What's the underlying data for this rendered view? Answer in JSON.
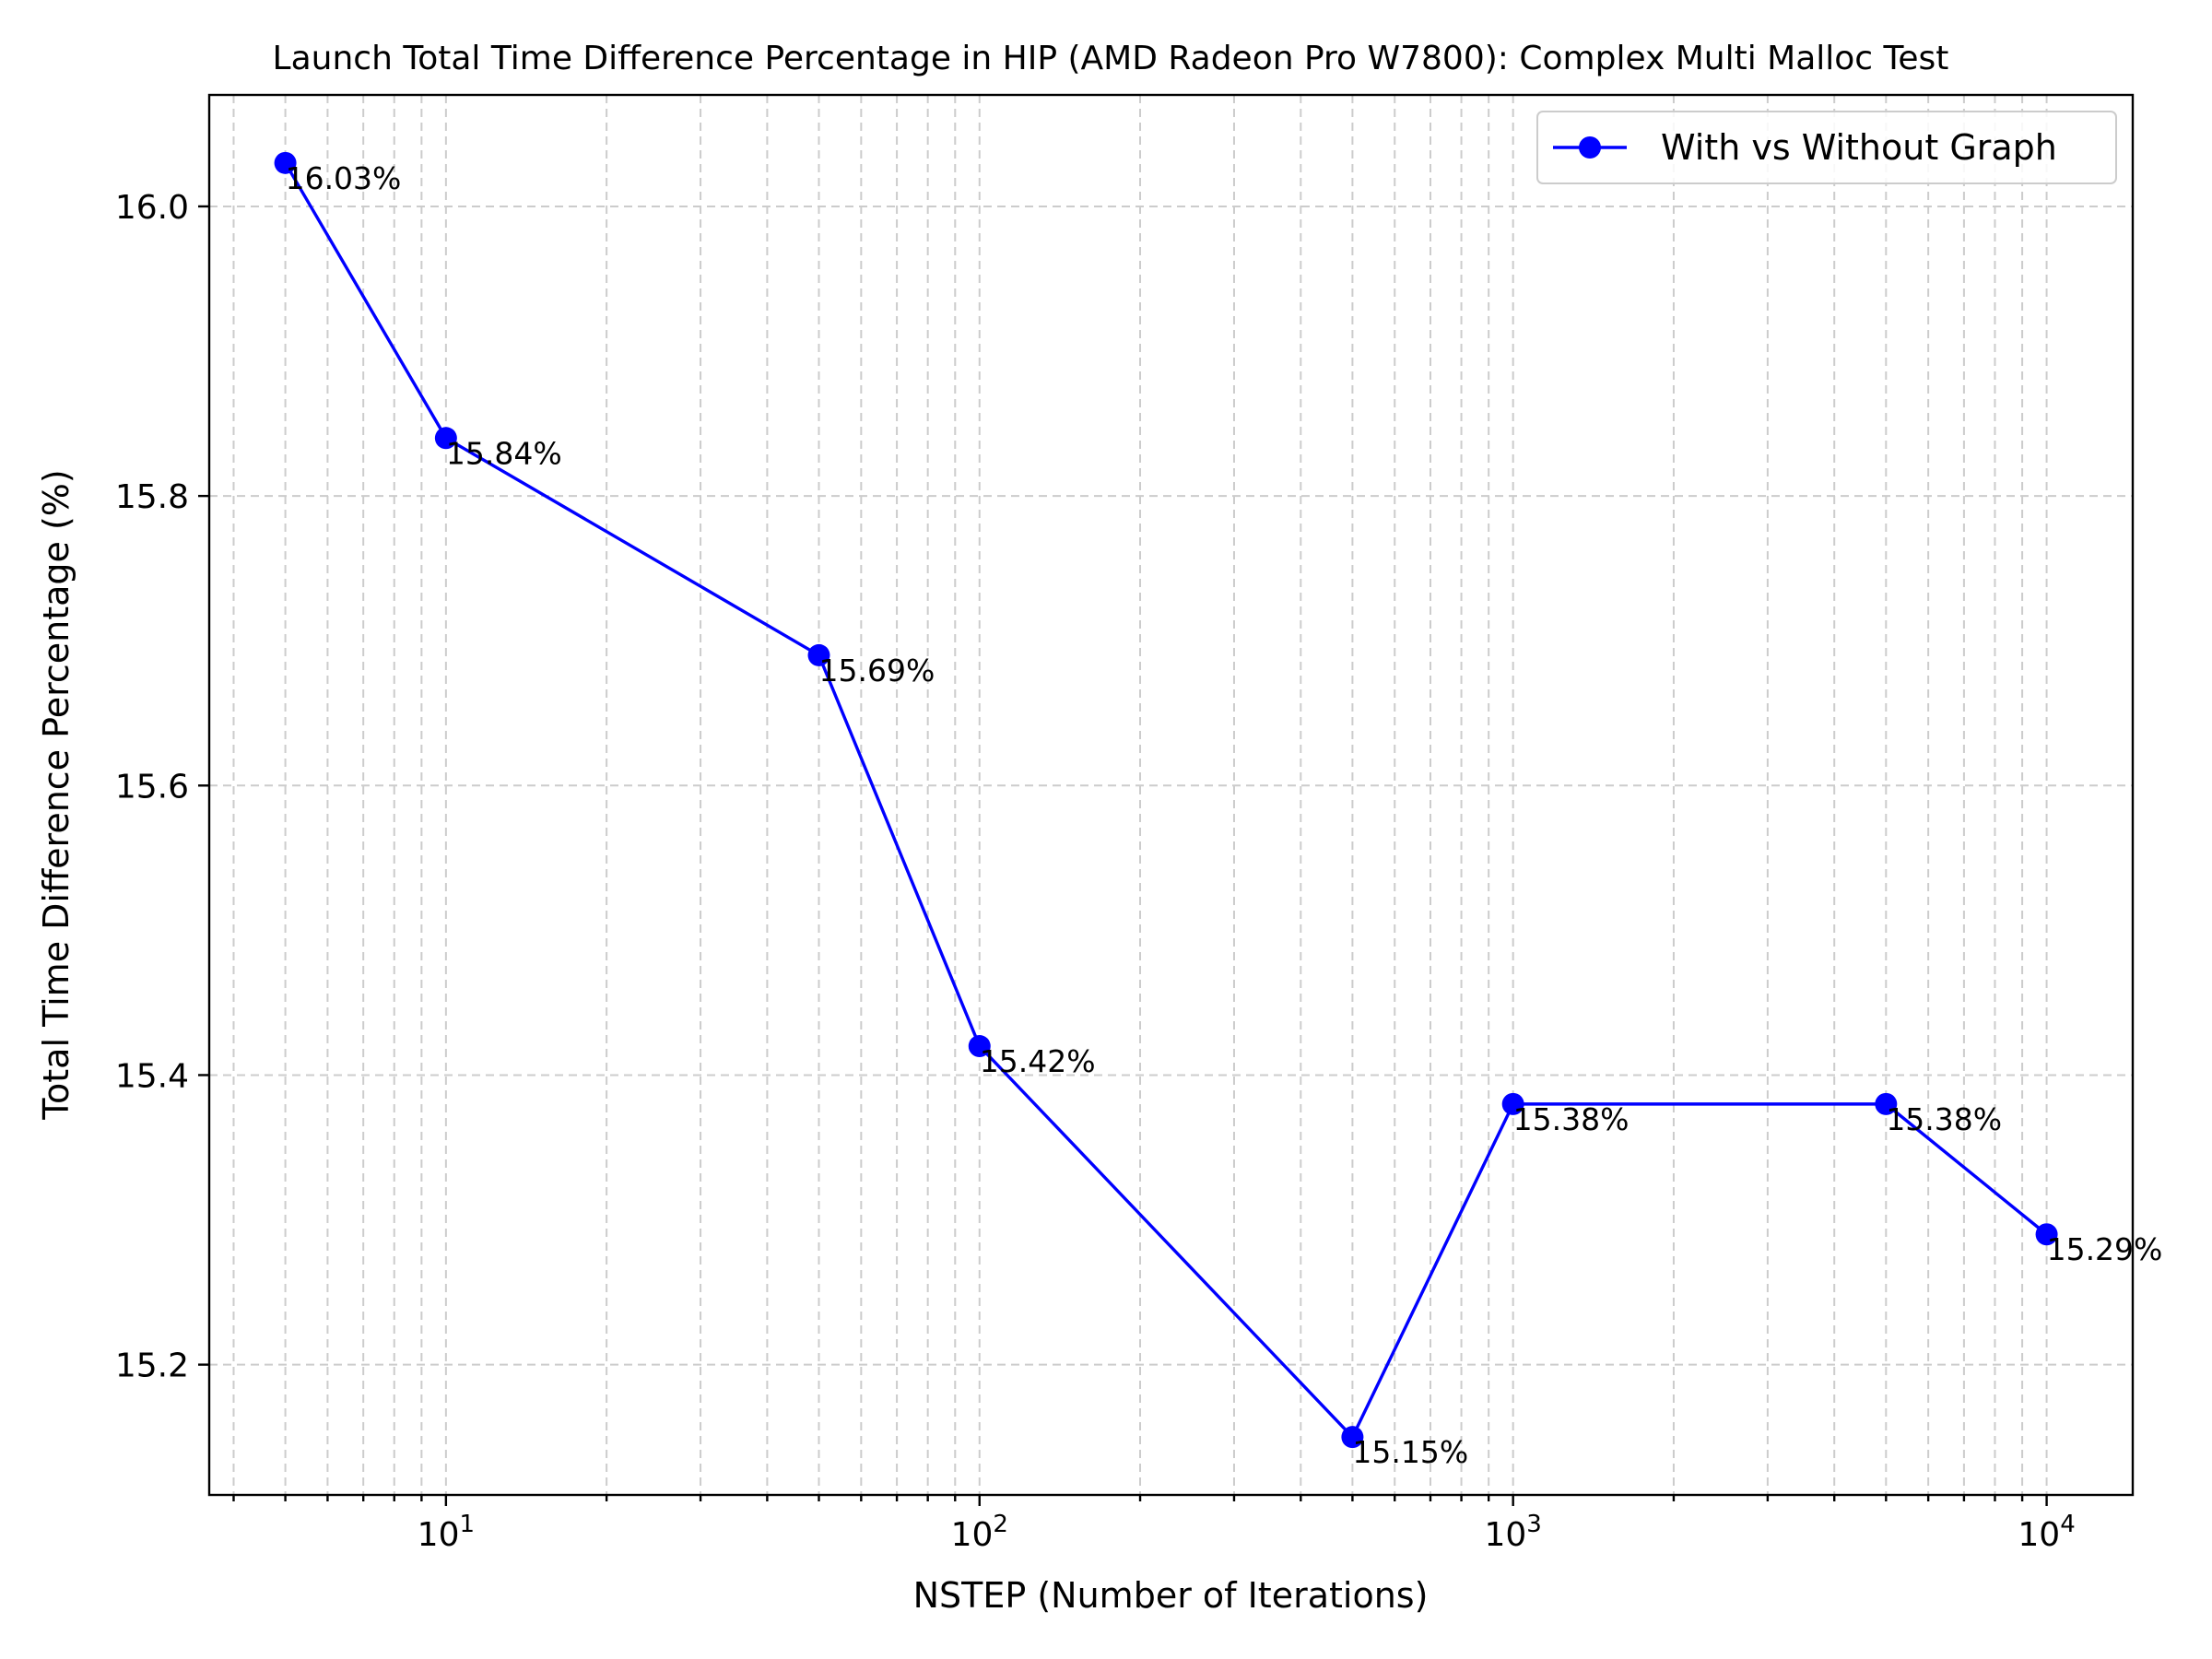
{
  "chart_data": {
    "type": "line",
    "title": "Launch Total Time Difference Percentage in HIP (AMD Radeon Pro W7800): Complex Multi Malloc Test",
    "xlabel": "NSTEP (Number of Iterations)",
    "ylabel": "Total Time Difference Percentage (%)",
    "xscale": "log",
    "xlim": [
      3.6,
      14500
    ],
    "ylim": [
      15.11,
      16.077
    ],
    "x_ticks": [
      {
        "value": 10,
        "base": "10",
        "exp": "1"
      },
      {
        "value": 100,
        "base": "10",
        "exp": "2"
      },
      {
        "value": 1000,
        "base": "10",
        "exp": "3"
      },
      {
        "value": 10000,
        "base": "10",
        "exp": "4"
      }
    ],
    "y_ticks": [
      15.2,
      15.4,
      15.6,
      15.8,
      16.0
    ],
    "y_tick_labels": [
      "15.2",
      "15.4",
      "15.6",
      "15.8",
      "16.0"
    ],
    "grid": true,
    "legend_position": "top-right",
    "series": [
      {
        "name": "With vs Without Graph",
        "color": "#0000ff",
        "x": [
          5,
          10,
          50,
          100,
          500,
          1000,
          5000,
          10000
        ],
        "y": [
          16.03,
          15.84,
          15.69,
          15.42,
          15.15,
          15.38,
          15.38,
          15.29
        ],
        "labels": [
          "16.03%",
          "15.84%",
          "15.69%",
          "15.42%",
          "15.15%",
          "15.38%",
          "15.38%",
          "15.29%"
        ]
      }
    ]
  }
}
